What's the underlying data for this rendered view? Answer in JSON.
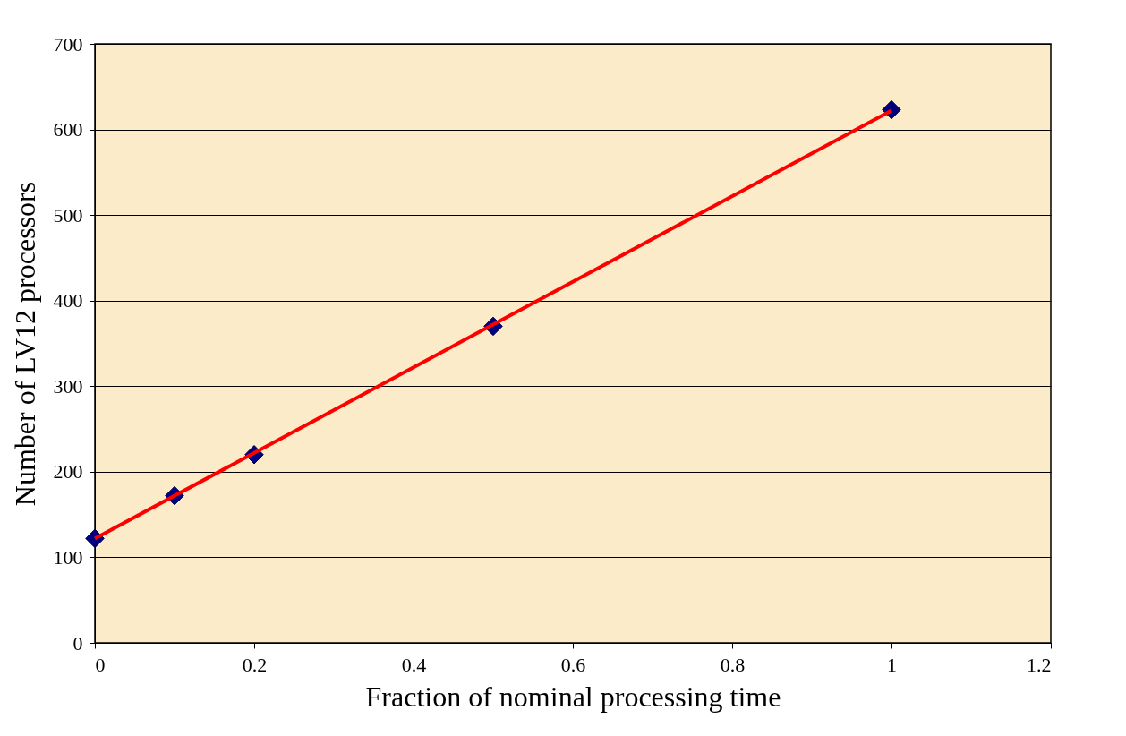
{
  "chart_data": {
    "type": "scatter",
    "xlabel": "Fraction of nominal processing time",
    "ylabel": "Number of LV12 processors",
    "xlim": [
      0,
      1.2
    ],
    "xticks": [
      0,
      0.2,
      0.4,
      0.6,
      0.8,
      1,
      1.2
    ],
    "ylim": [
      0,
      700
    ],
    "yticks": [
      0,
      100,
      200,
      300,
      400,
      500,
      600,
      700
    ],
    "grid": "y",
    "marker": "diamond",
    "series": [
      {
        "color": "#000080",
        "x": [
          0,
          0.1,
          0.2,
          0.5,
          1
        ],
        "values": [
          122,
          172,
          220,
          370,
          623
        ]
      },
      {
        "type": "line",
        "color": "#ff0000",
        "x": [
          0,
          1
        ],
        "values": [
          122,
          622
        ],
        "marker": "none",
        "line_style": "solid"
      }
    ]
  }
}
